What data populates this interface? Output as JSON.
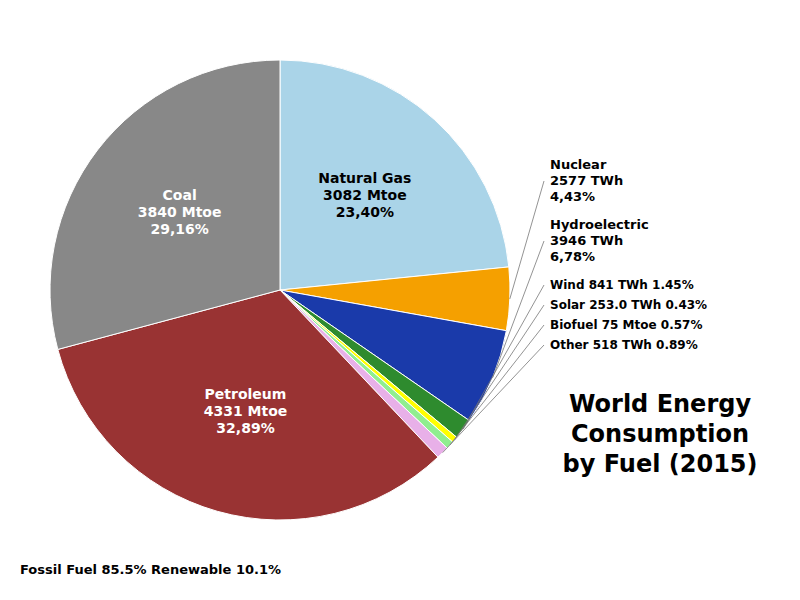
{
  "chart_data": {
    "type": "pie",
    "title": "World Energy\nConsumption\nby Fuel (2015)",
    "categories": [
      "Natural Gas\n3082 Mtoe\n23,40%",
      "Nuclear\n2577 TWh\n4,43%",
      "Hydroelectric\n3946 TWh\n6,78%",
      "Wind 841 TWh 1.45%",
      "Solar 253.0 TWh 0.43%",
      "Biofuel 75 Mtoe 0.57%",
      "Other 518 TWh 0.89%",
      "Petroleum\n4331 Mtoe\n32,89%",
      "Coal\n3840 Mtoe\n29,16%"
    ],
    "values": [
      23.4,
      4.43,
      6.78,
      1.45,
      0.43,
      0.57,
      0.89,
      32.89,
      29.16
    ],
    "colors": [
      "#aad4e8",
      "#f5a000",
      "#1a3aaa",
      "#2e8b2e",
      "#ffff00",
      "#90ee90",
      "#e8b0e8",
      "#993333",
      "#888888"
    ],
    "annotations": [
      "Fossil Fuel 85.5% Renewable 10.1%"
    ]
  }
}
